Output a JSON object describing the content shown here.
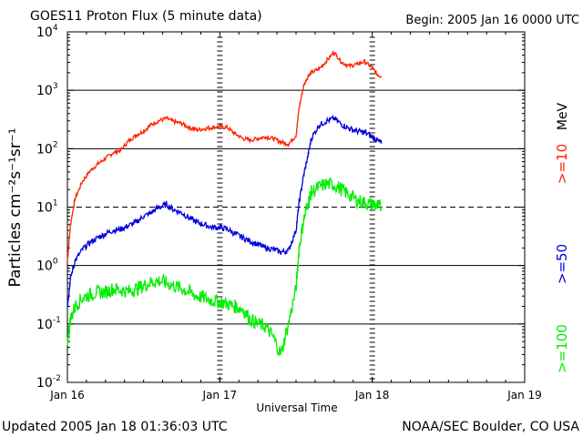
{
  "header": {
    "title": "GOES11 Proton Flux (5 minute data)",
    "begin": "Begin: 2005 Jan 16 0000 UTC"
  },
  "footer": {
    "updated": "Updated 2005 Jan 18 01:36:03 UTC",
    "credit": "NOAA/SEC Boulder, CO USA"
  },
  "chart_data": {
    "type": "line",
    "title": "GOES11 Proton Flux (5 minute data)",
    "xlabel": "Universal Time",
    "ylabel": "Particles cm⁻²s⁻¹sr⁻¹",
    "y_scale": "log",
    "ylim": [
      0.01,
      10000
    ],
    "xlim": [
      0,
      3
    ],
    "x_unit": "days since 2005 Jan 16 0000 UTC",
    "x_ticks": [
      {
        "x": 0,
        "label": "Jan 16"
      },
      {
        "x": 1,
        "label": "Jan 17"
      },
      {
        "x": 2,
        "label": "Jan 18"
      },
      {
        "x": 3,
        "label": "Jan 19"
      }
    ],
    "y_ticks": [
      {
        "y": 0.01,
        "base": "10",
        "exp": "-2"
      },
      {
        "y": 0.1,
        "base": "10",
        "exp": "-1"
      },
      {
        "y": 1,
        "base": "10",
        "exp": "0"
      },
      {
        "y": 10,
        "base": "10",
        "exp": "1"
      },
      {
        "y": 100,
        "base": "10",
        "exp": "2"
      },
      {
        "y": 1000,
        "base": "10",
        "exp": "3"
      },
      {
        "y": 10000,
        "base": "10",
        "exp": "4"
      }
    ],
    "thresholds": [
      {
        "y": 10,
        "style": "dashed"
      },
      {
        "y": 1,
        "style": "solid"
      },
      {
        "y": 0.1,
        "style": "solid"
      },
      {
        "y": 100,
        "style": "solid"
      },
      {
        "y": 1000,
        "style": "solid"
      }
    ],
    "grid": false,
    "legend": {
      "position": "right",
      "unit": "MeV"
    },
    "series": [
      {
        "name": ">=10",
        "color": "#ff2200",
        "x": [
          0,
          0.02,
          0.05,
          0.1,
          0.15,
          0.2,
          0.25,
          0.3,
          0.35,
          0.4,
          0.45,
          0.5,
          0.55,
          0.6,
          0.65,
          0.7,
          0.75,
          0.8,
          0.85,
          0.9,
          0.95,
          1.0,
          1.05,
          1.1,
          1.15,
          1.2,
          1.25,
          1.3,
          1.35,
          1.4,
          1.45,
          1.5,
          1.52,
          1.55,
          1.58,
          1.6,
          1.65,
          1.7,
          1.75,
          1.8,
          1.85,
          1.9,
          1.95,
          2.0,
          2.03,
          2.06
        ],
        "values": [
          1.2,
          5,
          14,
          28,
          42,
          55,
          68,
          85,
          95,
          135,
          170,
          200,
          260,
          300,
          330,
          290,
          270,
          230,
          210,
          220,
          230,
          240,
          230,
          180,
          150,
          140,
          150,
          160,
          150,
          130,
          120,
          170,
          500,
          1200,
          1800,
          2000,
          2300,
          3200,
          4500,
          3000,
          2600,
          2800,
          3100,
          2400,
          1900,
          1700
        ]
      },
      {
        "name": ">=50",
        "color": "#0000dd",
        "x": [
          0,
          0.02,
          0.05,
          0.1,
          0.15,
          0.2,
          0.25,
          0.3,
          0.35,
          0.4,
          0.45,
          0.5,
          0.55,
          0.6,
          0.65,
          0.7,
          0.75,
          0.8,
          0.85,
          0.9,
          0.95,
          1.0,
          1.05,
          1.1,
          1.15,
          1.2,
          1.25,
          1.3,
          1.35,
          1.4,
          1.45,
          1.5,
          1.52,
          1.55,
          1.58,
          1.6,
          1.65,
          1.7,
          1.75,
          1.8,
          1.85,
          1.9,
          1.95,
          2.0,
          2.03,
          2.06
        ],
        "values": [
          0.2,
          0.6,
          1.2,
          1.9,
          2.5,
          3.0,
          3.5,
          4.0,
          4.2,
          4.8,
          5.5,
          7.0,
          8.0,
          10,
          11,
          9,
          8,
          6.5,
          5.5,
          5.0,
          4.5,
          4.5,
          4.2,
          3.5,
          3.0,
          2.6,
          2.3,
          2.0,
          1.9,
          1.7,
          1.8,
          4.0,
          12,
          35,
          80,
          150,
          250,
          300,
          330,
          260,
          220,
          200,
          190,
          160,
          140,
          125
        ]
      },
      {
        "name": ">=100",
        "color": "#00ee00",
        "x": [
          0,
          0.02,
          0.05,
          0.1,
          0.15,
          0.2,
          0.25,
          0.3,
          0.35,
          0.4,
          0.45,
          0.5,
          0.55,
          0.6,
          0.65,
          0.7,
          0.75,
          0.8,
          0.85,
          0.9,
          0.95,
          1.0,
          1.05,
          1.1,
          1.15,
          1.2,
          1.25,
          1.3,
          1.35,
          1.4,
          1.45,
          1.5,
          1.52,
          1.55,
          1.58,
          1.6,
          1.65,
          1.7,
          1.75,
          1.8,
          1.85,
          1.9,
          1.95,
          2.0,
          2.03,
          2.06
        ],
        "values": [
          0.05,
          0.12,
          0.2,
          0.28,
          0.32,
          0.35,
          0.35,
          0.4,
          0.38,
          0.36,
          0.4,
          0.45,
          0.52,
          0.55,
          0.5,
          0.45,
          0.4,
          0.35,
          0.3,
          0.28,
          0.25,
          0.24,
          0.22,
          0.2,
          0.18,
          0.12,
          0.1,
          0.09,
          0.06,
          0.03,
          0.1,
          0.4,
          2.0,
          6.0,
          12,
          18,
          22,
          25,
          24,
          20,
          16,
          13,
          12,
          11,
          10.5,
          10
        ]
      }
    ]
  }
}
